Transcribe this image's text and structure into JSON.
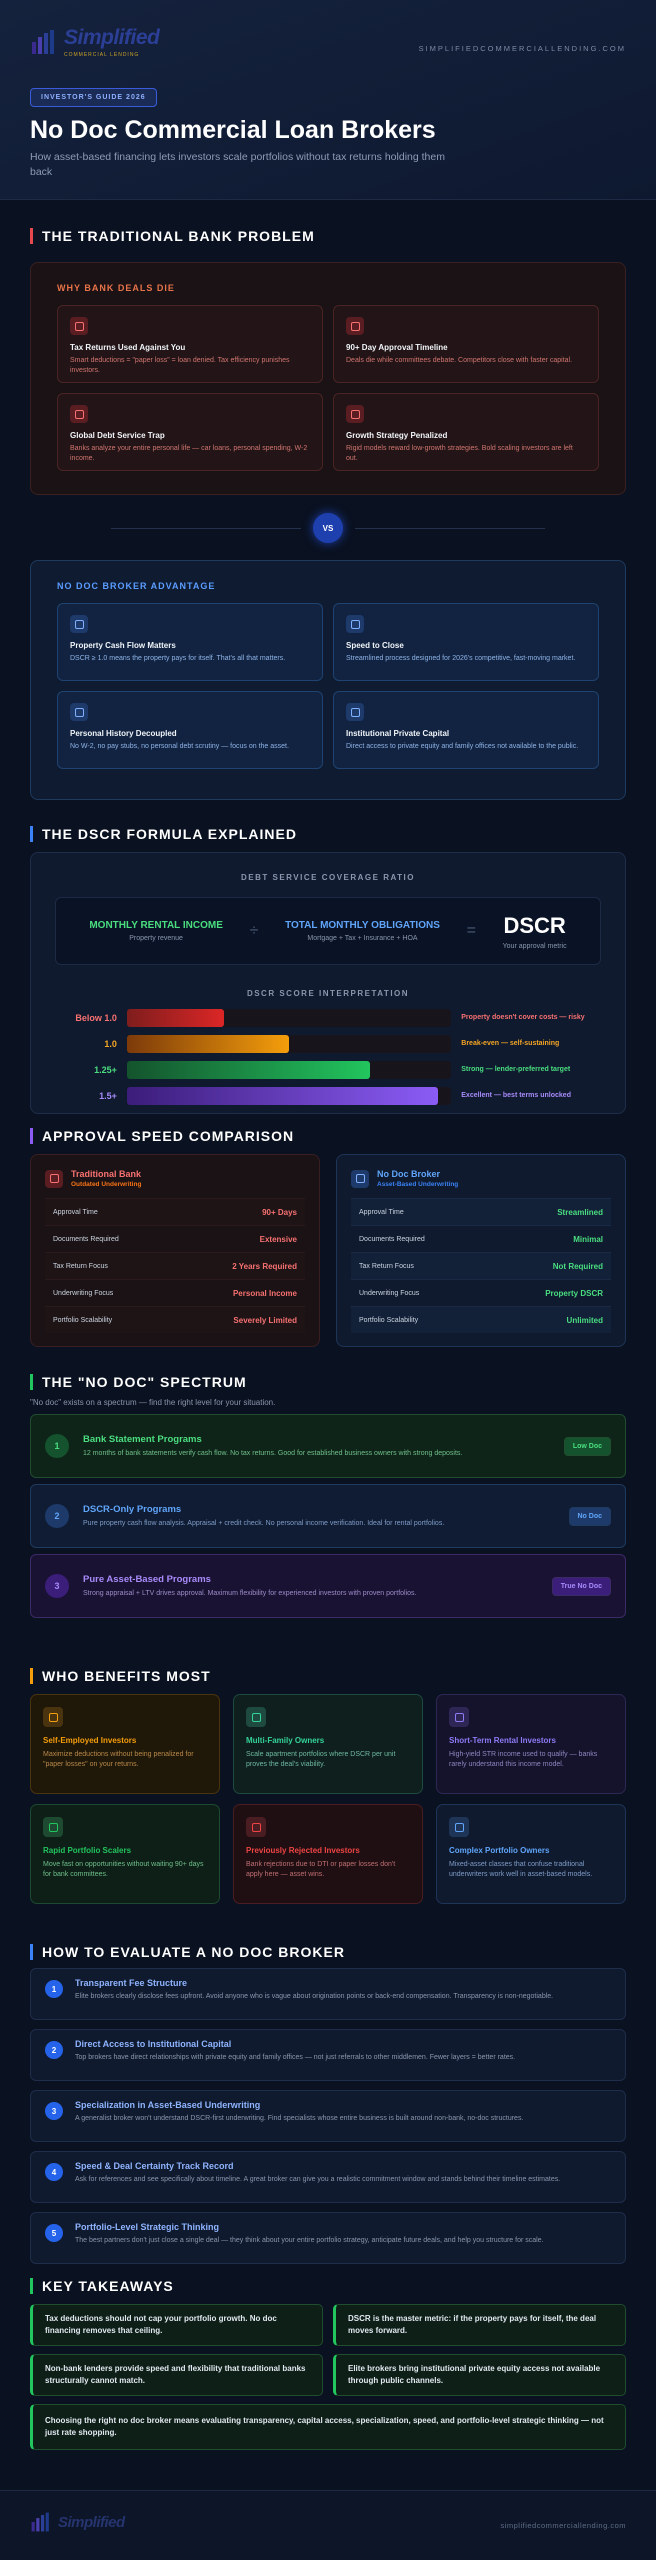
{
  "header": {
    "logo_name": "Simplified",
    "logo_tagline": "COMMERCIAL LENDING",
    "site": "SIMPLIFIEDCOMMERCIALLENDING.COM",
    "badge": "INVESTOR'S GUIDE 2026",
    "title": "No Doc Commercial Loan Brokers",
    "subtitle": "How asset-based financing lets investors scale portfolios without tax returns holding them back"
  },
  "bank_problem": {
    "heading": "THE TRADITIONAL BANK PROBLEM",
    "problems": {
      "title": "WHY BANK DEALS DIE",
      "items": [
        {
          "title": "Tax Returns Used Against You",
          "text": "Smart deductions = \"paper loss\" = loan denied. Tax efficiency punishes investors."
        },
        {
          "title": "90+ Day Approval Timeline",
          "text": "Deals die while committees debate. Competitors close with faster capital."
        },
        {
          "title": "Global Debt Service Trap",
          "text": "Banks analyze your entire personal life — car loans, personal spending, W-2 income."
        },
        {
          "title": "Growth Strategy Penalized",
          "text": "Rigid models reward low-growth strategies. Bold scaling investors are left out."
        }
      ]
    },
    "vs": "VS",
    "advantages": {
      "title": "NO DOC BROKER ADVANTAGE",
      "items": [
        {
          "title": "Property Cash Flow Matters",
          "text": "DSCR ≥ 1.0 means the property pays for itself. That's all that matters."
        },
        {
          "title": "Speed to Close",
          "text": "Streamlined process designed for 2026's competitive, fast-moving market."
        },
        {
          "title": "Personal History Decoupled",
          "text": "No W-2, no pay stubs, no personal debt scrutiny — focus on the asset."
        },
        {
          "title": "Institutional Private Capital",
          "text": "Direct access to private equity and family offices not available to the public."
        }
      ]
    }
  },
  "dscr": {
    "heading": "THE DSCR FORMULA EXPLAINED",
    "label": "DEBT SERVICE COVERAGE RATIO",
    "numerator": {
      "title": "MONTHLY RENTAL INCOME",
      "sub": "Property revenue"
    },
    "divide": "÷",
    "denominator": {
      "title": "TOTAL MONTHLY OBLIGATIONS",
      "sub": "Mortgage + Tax + Insurance + HOA"
    },
    "equals": "=",
    "result": {
      "title": "DSCR",
      "sub": "Your approval metric"
    },
    "scale_title": "DSCR SCORE INTERPRETATION",
    "levels": [
      {
        "label": "Below 1.0",
        "text": "Property doesn't cover costs — risky"
      },
      {
        "label": "1.0",
        "text": "Break-even — self-sustaining"
      },
      {
        "label": "1.25+",
        "text": "Strong — lender-preferred target"
      },
      {
        "label": "1.5+",
        "text": "Excellent — best terms unlocked"
      }
    ]
  },
  "approval": {
    "heading": "APPROVAL SPEED COMPARISON",
    "columns": [
      {
        "title": "Traditional Bank",
        "subtitle": "Outdated Underwriting",
        "rows": [
          {
            "label": "Approval Time",
            "value": "90+ Days"
          },
          {
            "label": "Documents Required",
            "value": "Extensive"
          },
          {
            "label": "Tax Return Focus",
            "value": "2 Years Required"
          },
          {
            "label": "Underwriting Focus",
            "value": "Personal Income"
          },
          {
            "label": "Portfolio Scalability",
            "value": "Severely Limited"
          }
        ]
      },
      {
        "title": "No Doc Broker",
        "subtitle": "Asset-Based Underwriting",
        "rows": [
          {
            "label": "Approval Time",
            "value": "Streamlined"
          },
          {
            "label": "Documents Required",
            "value": "Minimal"
          },
          {
            "label": "Tax Return Focus",
            "value": "Not Required"
          },
          {
            "label": "Underwriting Focus",
            "value": "Property DSCR"
          },
          {
            "label": "Portfolio Scalability",
            "value": "Unlimited"
          }
        ]
      }
    ]
  },
  "spectrum": {
    "heading": "THE \"NO DOC\" SPECTRUM",
    "intro": "\"No doc\" exists on a spectrum — find the right level for your situation.",
    "items": [
      {
        "number": "1",
        "title": "Bank Statement Programs",
        "text": "12 months of bank statements verify cash flow. No tax returns. Good for established business owners with strong deposits.",
        "tag": "Low Doc"
      },
      {
        "number": "2",
        "title": "DSCR-Only Programs",
        "text": "Pure property cash flow analysis. Appraisal + credit check. No personal income verification. Ideal for rental portfolios.",
        "tag": "No Doc"
      },
      {
        "number": "3",
        "title": "Pure Asset-Based Programs",
        "text": "Strong appraisal + LTV drives approval. Maximum flexibility for experienced investors with proven portfolios.",
        "tag": "True No Doc"
      }
    ]
  },
  "benefits": {
    "heading": "WHO BENEFITS MOST",
    "items": [
      {
        "title": "Self-Employed Investors",
        "text": "Maximize deductions without being penalized for \"paper losses\" on your returns."
      },
      {
        "title": "Multi-Family Owners",
        "text": "Scale apartment portfolios where DSCR per unit proves the deal's viability."
      },
      {
        "title": "Short-Term Rental Investors",
        "text": "High-yield STR income used to qualify — banks rarely understand this income model."
      },
      {
        "title": "Rapid Portfolio Scalers",
        "text": "Move fast on opportunities without waiting 90+ days for bank committees."
      },
      {
        "title": "Previously Rejected Investors",
        "text": "Bank rejections due to DTI or paper losses don't apply here — asset wins."
      },
      {
        "title": "Complex Portfolio Owners",
        "text": "Mixed-asset classes that confuse traditional underwriters work well in asset-based models."
      }
    ]
  },
  "evaluate": {
    "heading": "HOW TO EVALUATE A NO DOC BROKER",
    "items": [
      {
        "number": "1",
        "title": "Transparent Fee Structure",
        "text": "Elite brokers clearly disclose fees upfront. Avoid anyone who is vague about origination points or back-end compensation. Transparency is non-negotiable."
      },
      {
        "number": "2",
        "title": "Direct Access to Institutional Capital",
        "text": "Top brokers have direct relationships with private equity and family offices — not just referrals to other middlemen. Fewer layers = better rates."
      },
      {
        "number": "3",
        "title": "Specialization in Asset-Based Underwriting",
        "text": "A generalist broker won't understand DSCR-first underwriting. Find specialists whose entire business is built around non-bank, no-doc structures."
      },
      {
        "number": "4",
        "title": "Speed & Deal Certainty Track Record",
        "text": "Ask for references and see specifically about timeline. A great broker can give you a realistic commitment window and stands behind their timeline estimates."
      },
      {
        "number": "5",
        "title": "Portfolio-Level Strategic Thinking",
        "text": "The best partners don't just close a single deal — they think about your entire portfolio strategy, anticipate future deals, and help you structure for scale."
      }
    ]
  },
  "takeaways": {
    "heading": "KEY TAKEAWAYS",
    "items": [
      "Tax deductions should not cap your portfolio growth. No doc financing removes that ceiling.",
      "DSCR is the master metric: if the property pays for itself, the deal moves forward.",
      "Non-bank lenders provide speed and flexibility that traditional banks structurally cannot match.",
      "Elite brokers bring institutional private equity access not available through public channels.",
      "Choosing the right no doc broker means evaluating transparency, capital access, specialization, speed, and portfolio-level strategic thinking — not just rate shopping."
    ]
  },
  "footer": {
    "logo_name": "Simplified",
    "site": "simplifiedcommerciallending.com"
  }
}
